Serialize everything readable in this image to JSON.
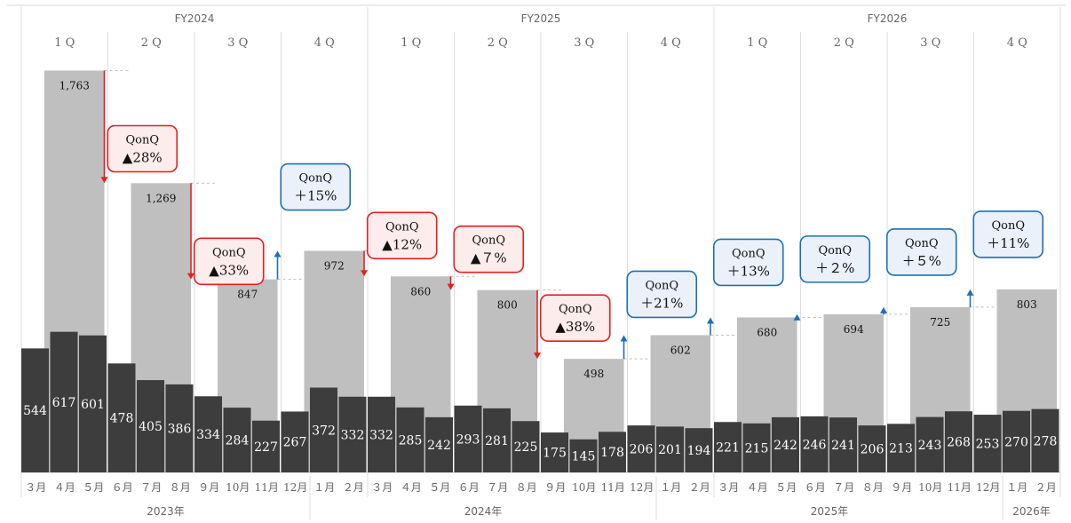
{
  "chart_data": {
    "type": "bar",
    "series": [
      {
        "name": "",
        "kind": "monthly",
        "color": "#3d3d3d"
      },
      {
        "name": "",
        "kind": "quarterly-total",
        "color": "#bfbfbf"
      }
    ],
    "fiscal_years": [
      {
        "label": "FY2024",
        "quarters": 4
      },
      {
        "label": "FY2025",
        "quarters": 4
      },
      {
        "label": "FY2026",
        "quarters": 4
      }
    ],
    "quarters": [
      {
        "label": "1 Q",
        "value": 1763,
        "value_label": "1,763",
        "change": "",
        "direction": ""
      },
      {
        "label": "2 Q",
        "value": 1269,
        "value_label": "1,269",
        "change": "▲28%",
        "direction": "down"
      },
      {
        "label": "3 Q",
        "value": 847,
        "value_label": "847",
        "change": "▲33%",
        "direction": "down"
      },
      {
        "label": "4 Q",
        "value": 972,
        "value_label": "972",
        "change": "＋15%",
        "direction": "up"
      },
      {
        "label": "1 Q",
        "value": 860,
        "value_label": "860",
        "change": "▲12%",
        "direction": "down"
      },
      {
        "label": "2 Q",
        "value": 800,
        "value_label": "800",
        "change": "▲７%",
        "direction": "down"
      },
      {
        "label": "3 Q",
        "value": 498,
        "value_label": "498",
        "change": "▲38%",
        "direction": "down"
      },
      {
        "label": "4 Q",
        "value": 602,
        "value_label": "602",
        "change": "＋21%",
        "direction": "up"
      },
      {
        "label": "1 Q",
        "value": 680,
        "value_label": "680",
        "change": "＋13%",
        "direction": "up"
      },
      {
        "label": "2 Q",
        "value": 694,
        "value_label": "694",
        "change": "＋２%",
        "direction": "up"
      },
      {
        "label": "3 Q",
        "value": 725,
        "value_label": "725",
        "change": "＋５%",
        "direction": "up"
      },
      {
        "label": "4 Q",
        "value": 803,
        "value_label": "803",
        "change": "＋11%",
        "direction": "up"
      }
    ],
    "callout_title": "QonQ",
    "months": [
      {
        "label": "３月",
        "value": 544
      },
      {
        "label": "４月",
        "value": 617
      },
      {
        "label": "５月",
        "value": 601
      },
      {
        "label": "６月",
        "value": 478
      },
      {
        "label": "７月",
        "value": 405
      },
      {
        "label": "８月",
        "value": 386
      },
      {
        "label": "９月",
        "value": 334
      },
      {
        "label": "10月",
        "value": 284
      },
      {
        "label": "11月",
        "value": 227
      },
      {
        "label": "12月",
        "value": 267
      },
      {
        "label": "１月",
        "value": 372
      },
      {
        "label": "２月",
        "value": 332
      },
      {
        "label": "３月",
        "value": 332
      },
      {
        "label": "４月",
        "value": 285
      },
      {
        "label": "５月",
        "value": 242
      },
      {
        "label": "６月",
        "value": 293
      },
      {
        "label": "７月",
        "value": 281
      },
      {
        "label": "８月",
        "value": 225
      },
      {
        "label": "９月",
        "value": 175
      },
      {
        "label": "10月",
        "value": 145
      },
      {
        "label": "11月",
        "value": 178
      },
      {
        "label": "12月",
        "value": 206
      },
      {
        "label": "１月",
        "value": 201
      },
      {
        "label": "２月",
        "value": 194
      },
      {
        "label": "３月",
        "value": 221
      },
      {
        "label": "４月",
        "value": 215
      },
      {
        "label": "５月",
        "value": 242
      },
      {
        "label": "６月",
        "value": 246
      },
      {
        "label": "７月",
        "value": 241
      },
      {
        "label": "８月",
        "value": 206
      },
      {
        "label": "９月",
        "value": 213
      },
      {
        "label": "10月",
        "value": 243
      },
      {
        "label": "11月",
        "value": 268
      },
      {
        "label": "12月",
        "value": 253
      },
      {
        "label": "１月",
        "value": 270
      },
      {
        "label": "２月",
        "value": 278
      }
    ],
    "calendar_years": [
      {
        "label": "2023年",
        "months": 10
      },
      {
        "label": "2024年",
        "months": 12
      },
      {
        "label": "2025年",
        "months": 12
      },
      {
        "label": "2026年",
        "months": 2
      }
    ],
    "ylim": [
      0,
      1800
    ],
    "grid": false,
    "colors": {
      "decrease": "#e32020",
      "decrease_fill": "#fdecec",
      "increase": "#1f6fb2",
      "increase_fill": "#eaf1fb"
    }
  }
}
